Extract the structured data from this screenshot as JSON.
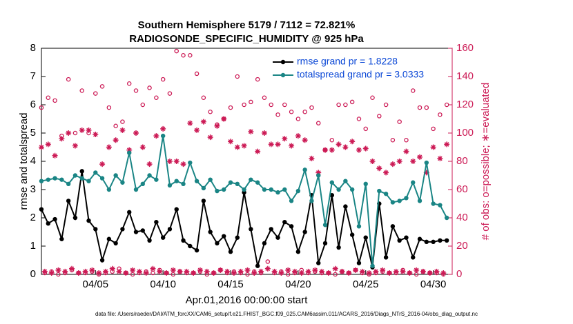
{
  "chart_data": {
    "type": "line",
    "title": "Southern Hemisphere 5179 / 7112 = 72.821%",
    "subtitle": "RADIOSONDE_SPECIFIC_HUMIDITY @ 925 hPa",
    "x_label": "Apr.01,2016 00:00:00 start",
    "y_label": "rmse and totalspread",
    "y2_label": "# of obs: o=possible; ∗=evaluated",
    "footer": "data file: /Users/raeder/DAI/ATM_forcXX/CAM6_setup/f.e21.FHIST_BGC.f09_025.CAM6assim.011/ACARS_2016/Diags_NTrS_2016-04/obs_diag_output.nc",
    "legend": "northeast",
    "xlim": [
      0,
      30.4
    ],
    "ylim": [
      0,
      8
    ],
    "y2lim": [
      0,
      160
    ],
    "xticks": [
      {
        "value": 4,
        "label": "04/05"
      },
      {
        "value": 9,
        "label": "04/10"
      },
      {
        "value": 14,
        "label": "04/15"
      },
      {
        "value": 19,
        "label": "04/20"
      },
      {
        "value": 24,
        "label": "04/25"
      },
      {
        "value": 29,
        "label": "04/30"
      }
    ],
    "yticks": [
      0,
      1,
      2,
      3,
      4,
      5,
      6,
      7,
      8
    ],
    "y2ticks": [
      0,
      20,
      40,
      60,
      80,
      100,
      120,
      140,
      160
    ],
    "y2_color": "#cc1a55",
    "x": [
      0,
      0.5,
      1,
      1.5,
      2,
      2.5,
      3,
      3.5,
      4,
      4.5,
      5,
      5.5,
      6,
      6.5,
      7,
      7.5,
      8,
      8.5,
      9,
      9.5,
      10,
      10.5,
      11,
      11.5,
      12,
      12.5,
      13,
      13.5,
      14,
      14.5,
      15,
      15.5,
      16,
      16.5,
      17,
      17.5,
      18,
      18.5,
      19,
      19.5,
      20,
      20.5,
      21,
      21.5,
      22,
      22.5,
      23,
      23.5,
      24,
      24.5,
      25,
      25.5,
      26,
      26.5,
      27,
      27.5,
      28,
      28.5,
      29,
      29.5,
      30
    ],
    "obs_x": [
      0,
      0.25,
      0.5,
      0.75,
      1,
      1.25,
      1.5,
      1.75,
      2,
      2.25,
      2.5,
      2.75,
      3,
      3.25,
      3.5,
      3.75,
      4,
      4.25,
      4.5,
      4.75,
      5,
      5.25,
      5.5,
      5.75,
      6,
      6.25,
      6.5,
      6.75,
      7,
      7.25,
      7.5,
      7.75,
      8,
      8.25,
      8.5,
      8.75,
      9,
      9.25,
      9.5,
      9.75,
      10,
      10.25,
      10.5,
      10.75,
      11,
      11.25,
      11.5,
      11.75,
      12,
      12.25,
      12.5,
      12.75,
      13,
      13.25,
      13.5,
      13.75,
      14,
      14.25,
      14.5,
      14.75,
      15,
      15.25,
      15.5,
      15.75,
      16,
      16.25,
      16.5,
      16.75,
      17,
      17.25,
      17.5,
      17.75,
      18,
      18.25,
      18.5,
      18.75,
      19,
      19.25,
      19.5,
      19.75,
      20,
      20.25,
      20.5,
      20.75,
      21,
      21.25,
      21.5,
      21.75,
      22,
      22.25,
      22.5,
      22.75,
      23,
      23.25,
      23.5,
      23.75,
      24,
      24.25,
      24.5,
      24.75,
      25,
      25.25,
      25.5,
      25.75,
      26,
      26.25,
      26.5,
      26.75,
      27,
      27.25,
      27.5,
      27.75,
      28,
      28.25,
      28.5,
      28.75,
      29,
      29.25,
      29.5,
      29.75,
      30
    ],
    "series": [
      {
        "name": "rmse grand pr = 1.8228",
        "color": "#000000",
        "values": [
          2.3,
          1.8,
          1.95,
          1.25,
          2.6,
          2.0,
          3.65,
          1.9,
          1.6,
          0.5,
          1.25,
          1.1,
          1.6,
          2.2,
          1.5,
          1.55,
          1.2,
          1.85,
          1.3,
          1.6,
          2.3,
          1.2,
          1.0,
          0.85,
          2.6,
          1.5,
          1.1,
          1.35,
          0.8,
          1.3,
          2.9,
          1.6,
          0.3,
          1.1,
          1.6,
          1.3,
          1.85,
          1.7,
          0.8,
          1.5,
          2.8,
          0.4,
          1.1,
          2.8,
          0.95,
          2.4,
          1.4,
          0.4,
          1.3,
          0.25,
          2.5,
          0.6,
          1.7,
          1.2,
          1.3,
          0.6,
          1.25,
          1.15,
          1.15,
          1.2,
          1.2
        ]
      },
      {
        "name": "totalspread grand pr = 3.0333",
        "color": "#1a8585",
        "values": [
          3.3,
          3.35,
          3.4,
          3.35,
          3.2,
          3.5,
          3.4,
          3.3,
          3.6,
          3.4,
          3.0,
          3.5,
          3.25,
          4.3,
          3.0,
          3.2,
          3.5,
          3.35,
          4.9,
          3.15,
          3.3,
          3.2,
          3.95,
          3.3,
          3.05,
          3.35,
          2.95,
          3.0,
          3.25,
          3.2,
          3.0,
          3.35,
          3.25,
          3.0,
          3.0,
          2.9,
          3.0,
          2.6,
          2.95,
          3.7,
          2.6,
          3.5,
          1.75,
          3.25,
          3.0,
          3.3,
          3.0,
          1.7,
          3.2,
          0.3,
          2.95,
          2.85,
          2.55,
          2.6,
          2.7,
          3.25,
          2.6,
          3.95,
          2.5,
          2.45,
          2.0
        ]
      }
    ],
    "obs_series": [
      {
        "marker": "circle",
        "color": "#cc1a55",
        "axis": "y2",
        "values": [
          118,
          1,
          125,
          2,
          123,
          0,
          98,
          1,
          138,
          3,
          100,
          1,
          130,
          1,
          100,
          2,
          128,
          0,
          133,
          1,
          118,
          2,
          105,
          4,
          108,
          1,
          135,
          0,
          130,
          1,
          120,
          2,
          132,
          1,
          125,
          3,
          138,
          1,
          128,
          0,
          158,
          2,
          155,
          1,
          155,
          1,
          142,
          2,
          125,
          0,
          115,
          1,
          106,
          3,
          110,
          1,
          118,
          2,
          140,
          1,
          120,
          0,
          122,
          2,
          138,
          1,
          125,
          9,
          120,
          1,
          113,
          2,
          120,
          0,
          115,
          1,
          110,
          3,
          115,
          1,
          118,
          2,
          107,
          1,
          88,
          1,
          95,
          0,
          120,
          2,
          120,
          1,
          122,
          3,
          110,
          1,
          103,
          0,
          125,
          1,
          112,
          2,
          120,
          1,
          95,
          1,
          108,
          3,
          95,
          1,
          130,
          0,
          118,
          2,
          118,
          1,
          103,
          1,
          113,
          0,
          120
        ]
      },
      {
        "marker": "star",
        "color": "#cc1a55",
        "axis": "y2",
        "values": [
          90,
          2,
          92,
          1,
          84,
          3,
          96,
          2,
          100,
          4,
          91,
          1,
          102,
          2,
          102,
          3,
          99,
          1,
          78,
          2,
          90,
          4,
          95,
          2,
          102,
          1,
          88,
          3,
          100,
          2,
          90,
          1,
          78,
          4,
          98,
          2,
          103,
          1,
          80,
          3,
          80,
          2,
          78,
          2,
          107,
          1,
          102,
          3,
          108,
          2,
          97,
          1,
          105,
          3,
          110,
          2,
          94,
          1,
          90,
          2,
          91,
          3,
          101,
          1,
          87,
          2,
          100,
          4,
          92,
          2,
          92,
          1,
          96,
          3,
          91,
          2,
          98,
          1,
          95,
          2,
          82,
          3,
          72,
          2,
          88,
          1,
          88,
          4,
          92,
          2,
          90,
          1,
          94,
          3,
          88,
          2,
          89,
          1,
          80,
          2,
          75,
          3,
          72,
          1,
          78,
          2,
          80,
          2,
          87,
          1,
          80,
          3,
          83,
          2,
          72,
          1,
          90,
          2,
          82,
          1,
          92
        ]
      }
    ]
  }
}
